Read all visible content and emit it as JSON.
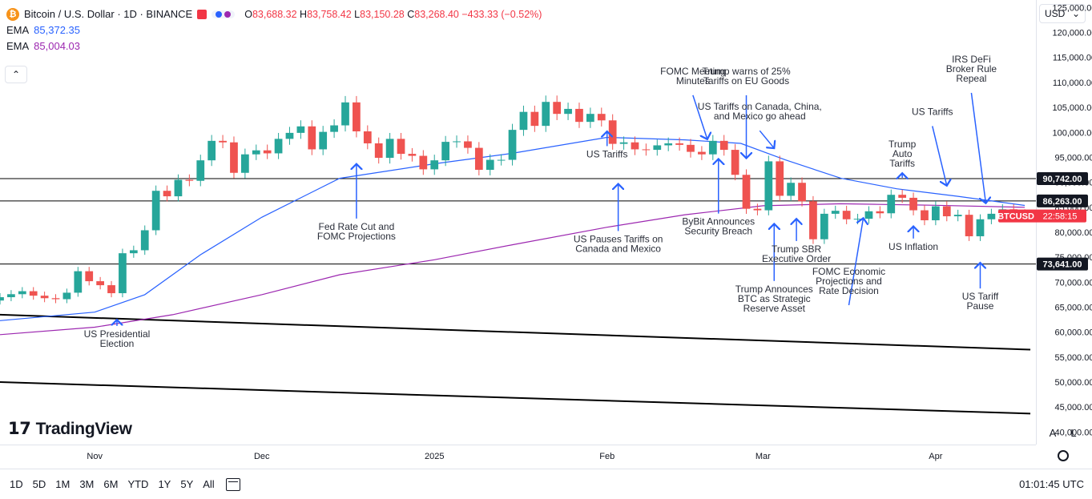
{
  "header": {
    "symbol_title": "Bitcoin / U.S. Dollar · 1D · BINANCE",
    "ohlc": {
      "o_label": "O",
      "o": "83,688.32",
      "h_label": "H",
      "h": "83,758.42",
      "l_label": "L",
      "l": "83,150.28",
      "c_label": "C",
      "c": "83,268.40",
      "change": "−433.33 (−0.52%)"
    },
    "ema1_label": "EMA",
    "ema1_value": "85,372.35",
    "ema2_label": "EMA",
    "ema2_value": "85,004.03",
    "btc_icon": "bitcoin-icon"
  },
  "currency_button": "USD",
  "collapse_icon": "chevron-up-icon",
  "colors": {
    "up": "#26a69a",
    "down": "#ef5350",
    "ema_fast": "#2962ff",
    "ema_slow": "#9c27b0",
    "last_price": "#f23645",
    "annotation": "#2962ff"
  },
  "bottom_bar": {
    "timeframes": [
      "1D",
      "5D",
      "1M",
      "3M",
      "6M",
      "YTD",
      "1Y",
      "5Y",
      "All"
    ],
    "clock": "01:01:45 UTC"
  },
  "logo": "TradingView",
  "axis_buttons": [
    "A",
    "L"
  ],
  "chart_data": {
    "type": "candlestick",
    "y_ticks": [
      40000,
      45000,
      50000,
      55000,
      60000,
      65000,
      70000,
      75000,
      80000,
      85000,
      90000,
      95000,
      100000,
      105000,
      110000,
      115000,
      120000,
      125000
    ],
    "y_tick_labels": [
      "40,000.00",
      "45,000.00",
      "50,000.00",
      "55,000.00",
      "60,000.00",
      "65,000.00",
      "70,000.00",
      "75,000.00",
      "80,000.00",
      "85,000.00",
      "90,000.00",
      "95,000.00",
      "100,000.00",
      "105,000.00",
      "110,000.00",
      "115,000.00",
      "120,000.00",
      "125,000.00"
    ],
    "ylim": [
      37500,
      126500
    ],
    "x_range": [
      "2024-10-15",
      "2025-04-19"
    ],
    "x_ticks": [
      {
        "date": "2024-11-01",
        "label": "Nov"
      },
      {
        "date": "2024-12-01",
        "label": "Dec"
      },
      {
        "date": "2025-01-01",
        "label": "2025"
      },
      {
        "date": "2025-02-01",
        "label": "Feb"
      },
      {
        "date": "2025-03-01",
        "label": "Mar"
      },
      {
        "date": "2025-04-01",
        "label": "Apr"
      }
    ],
    "closes": [
      {
        "d": "2024-10-15",
        "c": 67000
      },
      {
        "d": "2024-10-17",
        "c": 67600
      },
      {
        "d": "2024-10-19",
        "c": 68200
      },
      {
        "d": "2024-10-21",
        "c": 67300
      },
      {
        "d": "2024-10-23",
        "c": 66800
      },
      {
        "d": "2024-10-25",
        "c": 66600
      },
      {
        "d": "2024-10-27",
        "c": 67900
      },
      {
        "d": "2024-10-29",
        "c": 72200
      },
      {
        "d": "2024-10-31",
        "c": 70200
      },
      {
        "d": "2024-11-02",
        "c": 69400
      },
      {
        "d": "2024-11-04",
        "c": 67800
      },
      {
        "d": "2024-11-06",
        "c": 75800
      },
      {
        "d": "2024-11-08",
        "c": 76400
      },
      {
        "d": "2024-11-10",
        "c": 80400
      },
      {
        "d": "2024-11-12",
        "c": 88300
      },
      {
        "d": "2024-11-14",
        "c": 87200
      },
      {
        "d": "2024-11-16",
        "c": 90500
      },
      {
        "d": "2024-11-18",
        "c": 90300
      },
      {
        "d": "2024-11-20",
        "c": 94400
      },
      {
        "d": "2024-11-22",
        "c": 98300
      },
      {
        "d": "2024-11-24",
        "c": 98000
      },
      {
        "d": "2024-11-26",
        "c": 91900
      },
      {
        "d": "2024-11-28",
        "c": 95600
      },
      {
        "d": "2024-11-30",
        "c": 96400
      },
      {
        "d": "2024-12-02",
        "c": 95800
      },
      {
        "d": "2024-12-04",
        "c": 98700
      },
      {
        "d": "2024-12-06",
        "c": 99900
      },
      {
        "d": "2024-12-08",
        "c": 101200
      },
      {
        "d": "2024-12-10",
        "c": 96600
      },
      {
        "d": "2024-12-12",
        "c": 100100
      },
      {
        "d": "2024-12-14",
        "c": 101400
      },
      {
        "d": "2024-12-16",
        "c": 106000
      },
      {
        "d": "2024-12-18",
        "c": 100200
      },
      {
        "d": "2024-12-20",
        "c": 97800
      },
      {
        "d": "2024-12-22",
        "c": 94900
      },
      {
        "d": "2024-12-24",
        "c": 98700
      },
      {
        "d": "2024-12-26",
        "c": 95700
      },
      {
        "d": "2024-12-28",
        "c": 95300
      },
      {
        "d": "2024-12-30",
        "c": 92600
      },
      {
        "d": "2025-01-01",
        "c": 94400
      },
      {
        "d": "2025-01-03",
        "c": 98100
      },
      {
        "d": "2025-01-05",
        "c": 98200
      },
      {
        "d": "2025-01-07",
        "c": 96900
      },
      {
        "d": "2025-01-09",
        "c": 92500
      },
      {
        "d": "2025-01-11",
        "c": 94500
      },
      {
        "d": "2025-01-13",
        "c": 94500
      },
      {
        "d": "2025-01-15",
        "c": 100500
      },
      {
        "d": "2025-01-17",
        "c": 104100
      },
      {
        "d": "2025-01-19",
        "c": 101300
      },
      {
        "d": "2025-01-21",
        "c": 106100
      },
      {
        "d": "2025-01-23",
        "c": 103700
      },
      {
        "d": "2025-01-25",
        "c": 104700
      },
      {
        "d": "2025-01-27",
        "c": 102100
      },
      {
        "d": "2025-01-29",
        "c": 103700
      },
      {
        "d": "2025-01-31",
        "c": 102400
      },
      {
        "d": "2025-02-02",
        "c": 97700
      },
      {
        "d": "2025-02-04",
        "c": 98000
      },
      {
        "d": "2025-02-06",
        "c": 96600
      },
      {
        "d": "2025-02-08",
        "c": 96500
      },
      {
        "d": "2025-02-10",
        "c": 97400
      },
      {
        "d": "2025-02-12",
        "c": 97800
      },
      {
        "d": "2025-02-14",
        "c": 97500
      },
      {
        "d": "2025-02-16",
        "c": 96100
      },
      {
        "d": "2025-02-18",
        "c": 95600
      },
      {
        "d": "2025-02-20",
        "c": 98300
      },
      {
        "d": "2025-02-22",
        "c": 96500
      },
      {
        "d": "2025-02-24",
        "c": 91500
      },
      {
        "d": "2025-02-26",
        "c": 84700
      },
      {
        "d": "2025-02-28",
        "c": 84400
      },
      {
        "d": "2025-03-02",
        "c": 94200
      },
      {
        "d": "2025-03-04",
        "c": 87300
      },
      {
        "d": "2025-03-06",
        "c": 89900
      },
      {
        "d": "2025-03-08",
        "c": 86200
      },
      {
        "d": "2025-03-10",
        "c": 78600
      },
      {
        "d": "2025-03-12",
        "c": 83700
      },
      {
        "d": "2025-03-14",
        "c": 84300
      },
      {
        "d": "2025-03-16",
        "c": 82600
      },
      {
        "d": "2025-03-18",
        "c": 82700
      },
      {
        "d": "2025-03-20",
        "c": 84200
      },
      {
        "d": "2025-03-22",
        "c": 83800
      },
      {
        "d": "2025-03-24",
        "c": 87500
      },
      {
        "d": "2025-03-26",
        "c": 86900
      },
      {
        "d": "2025-03-28",
        "c": 84400
      },
      {
        "d": "2025-03-30",
        "c": 82400
      },
      {
        "d": "2025-04-01",
        "c": 85200
      },
      {
        "d": "2025-04-03",
        "c": 83200
      },
      {
        "d": "2025-04-05",
        "c": 83500
      },
      {
        "d": "2025-04-07",
        "c": 79200
      },
      {
        "d": "2025-04-09",
        "c": 82600
      },
      {
        "d": "2025-04-11",
        "c": 83700
      },
      {
        "d": "2025-04-13",
        "c": 84600
      },
      {
        "d": "2025-04-15",
        "c": 83600
      },
      {
        "d": "2025-04-17",
        "c": 83268
      }
    ],
    "ema_fast": [
      {
        "d": "2024-10-15",
        "v": 62300
      },
      {
        "d": "2024-11-01",
        "v": 64000
      },
      {
        "d": "2024-11-10",
        "v": 67500
      },
      {
        "d": "2024-11-20",
        "v": 75500
      },
      {
        "d": "2024-12-01",
        "v": 83000
      },
      {
        "d": "2024-12-15",
        "v": 90800
      },
      {
        "d": "2025-01-01",
        "v": 93700
      },
      {
        "d": "2025-01-15",
        "v": 95800
      },
      {
        "d": "2025-02-01",
        "v": 99000
      },
      {
        "d": "2025-02-15",
        "v": 98500
      },
      {
        "d": "2025-02-25",
        "v": 97800
      },
      {
        "d": "2025-03-05",
        "v": 94500
      },
      {
        "d": "2025-03-15",
        "v": 90800
      },
      {
        "d": "2025-03-25",
        "v": 88700
      },
      {
        "d": "2025-04-05",
        "v": 87200
      },
      {
        "d": "2025-04-17",
        "v": 85372
      }
    ],
    "ema_slow": [
      {
        "d": "2024-10-15",
        "v": 59500
      },
      {
        "d": "2024-11-01",
        "v": 61000
      },
      {
        "d": "2024-11-15",
        "v": 63500
      },
      {
        "d": "2024-12-01",
        "v": 67500
      },
      {
        "d": "2024-12-15",
        "v": 71500
      },
      {
        "d": "2025-01-01",
        "v": 74500
      },
      {
        "d": "2025-01-15",
        "v": 77500
      },
      {
        "d": "2025-02-01",
        "v": 81000
      },
      {
        "d": "2025-02-15",
        "v": 83500
      },
      {
        "d": "2025-03-01",
        "v": 85300
      },
      {
        "d": "2025-03-15",
        "v": 85700
      },
      {
        "d": "2025-04-01",
        "v": 85400
      },
      {
        "d": "2025-04-17",
        "v": 85004
      }
    ],
    "horizontal_levels": [
      {
        "value": 90742,
        "label": "90,742.00"
      },
      {
        "value": 86263,
        "label": "86,263.00"
      },
      {
        "value": 73641,
        "label": "73,641.00"
      }
    ],
    "trendlines": [
      {
        "from": {
          "d": "2024-10-15",
          "v": 63500
        },
        "to": {
          "d": "2025-04-18",
          "v": 56500
        }
      },
      {
        "from": {
          "d": "2024-10-15",
          "v": 50000
        },
        "to": {
          "d": "2025-04-18",
          "v": 43700
        }
      }
    ],
    "last_price": {
      "symbol": "BTCUSD",
      "value": 83268.4,
      "countdown": "22:58:15"
    },
    "annotations": [
      {
        "lines": [
          "US Presidential",
          "Election"
        ],
        "d": "2024-11-05",
        "v": 62800,
        "text_v": 59000,
        "dir": "up"
      },
      {
        "lines": [
          "Fed Rate Cut and",
          "FOMC Projections"
        ],
        "d": "2024-12-18",
        "v": 94000,
        "text_v": 80500,
        "dir": "up"
      },
      {
        "lines": [
          "US Tariffs"
        ],
        "d": "2025-02-01",
        "v": 100500,
        "text_v": 95000,
        "dir": "up"
      },
      {
        "lines": [
          "US Pauses Tariffs on",
          "Canada and Mexico"
        ],
        "d": "2025-02-03",
        "v": 90000,
        "text_v": 78000,
        "dir": "up"
      },
      {
        "lines": [
          "FOMC Meeting",
          "Minutes"
        ],
        "d": "2025-02-19",
        "v": 98300,
        "text_v": 111600,
        "dir": "diag"
      },
      {
        "lines": [
          "Trump warns of 25%",
          "Tariffs on EU Goods"
        ],
        "d": "2025-02-26",
        "v": 94500,
        "text_v": 111600,
        "dir": "down"
      },
      {
        "lines": [
          "ByBit Announces",
          "Security Breach"
        ],
        "d": "2025-02-21",
        "v": 95000,
        "text_v": 81500,
        "dir": "up"
      },
      {
        "lines": [
          "US Tariffs on Canada, China,",
          "and Mexico go ahead"
        ],
        "d": "2025-03-03",
        "v": 96500,
        "text_v": 104500,
        "dir": "diag"
      },
      {
        "lines": [
          "Trump Announces",
          "BTC as Strategic",
          "Reserve Asset"
        ],
        "d": "2025-03-03",
        "v": 82000,
        "text_v": 68000,
        "dir": "up"
      },
      {
        "lines": [
          "Trump SBR",
          "Executive Order"
        ],
        "d": "2025-03-07",
        "v": 83000,
        "text_v": 76000,
        "dir": "up"
      },
      {
        "lines": [
          "FOMC Economic",
          "Projections and",
          "Rate Decision"
        ],
        "d": "2025-03-19",
        "v": 82500,
        "text_v": 71500,
        "dir": "diag"
      },
      {
        "lines": [
          "Trump",
          "Auto",
          "Tariffs"
        ],
        "d": "2025-03-26",
        "v": 91500,
        "text_v": 97000,
        "dir": "down"
      },
      {
        "lines": [
          "US Inflation"
        ],
        "d": "2025-03-28",
        "v": 81500,
        "text_v": 76500,
        "dir": "up"
      },
      {
        "lines": [
          "US Tariffs"
        ],
        "d": "2025-04-03",
        "v": 89000,
        "text_v": 103500,
        "dir": "diag"
      },
      {
        "lines": [
          "IRS DeFi",
          "Broker Rule",
          "Repeal"
        ],
        "d": "2025-04-10",
        "v": 85500,
        "text_v": 114000,
        "dir": "diag"
      },
      {
        "lines": [
          "US Tariff",
          "Pause"
        ],
        "d": "2025-04-09",
        "v": 74200,
        "text_v": 66500,
        "dir": "up"
      }
    ]
  }
}
